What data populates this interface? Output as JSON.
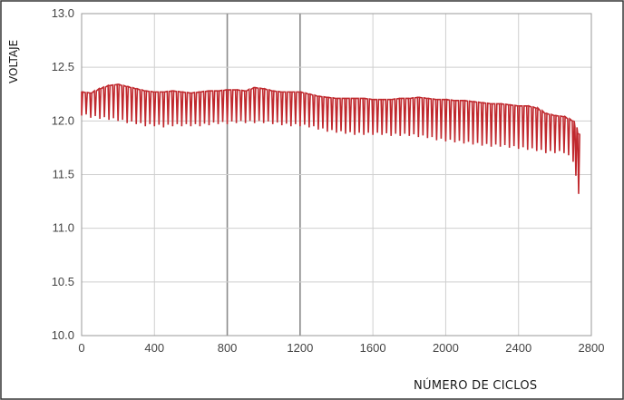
{
  "chart_data": {
    "type": "line",
    "xlabel": "NÚMERO DE CICLOS",
    "ylabel": "VOLTAJE",
    "xlim": [
      0,
      2800
    ],
    "ylim": [
      10.0,
      13.0
    ],
    "x_ticks": [
      "0",
      "400",
      "800",
      "1200",
      "1600",
      "2000",
      "2400",
      "2800"
    ],
    "y_ticks": [
      "10.0",
      "10.5",
      "11.0",
      "11.5",
      "12.0",
      "12.5",
      "13.0"
    ],
    "grid": true,
    "series": [
      {
        "color": "#c0282d",
        "x": [
          0,
          50,
          100,
          150,
          200,
          250,
          300,
          350,
          400,
          450,
          500,
          550,
          600,
          650,
          700,
          750,
          800,
          850,
          900,
          950,
          1000,
          1050,
          1100,
          1150,
          1200,
          1250,
          1300,
          1350,
          1400,
          1450,
          1500,
          1550,
          1600,
          1650,
          1700,
          1750,
          1800,
          1850,
          1900,
          1950,
          2000,
          2050,
          2100,
          2150,
          2200,
          2250,
          2300,
          2350,
          2400,
          2450,
          2500,
          2550,
          2600,
          2650,
          2700,
          2730
        ],
        "upper": [
          12.27,
          12.26,
          12.3,
          12.33,
          12.34,
          12.32,
          12.3,
          12.28,
          12.27,
          12.27,
          12.28,
          12.27,
          12.26,
          12.27,
          12.28,
          12.28,
          12.29,
          12.29,
          12.28,
          12.31,
          12.3,
          12.28,
          12.27,
          12.27,
          12.27,
          12.25,
          12.23,
          12.22,
          12.21,
          12.21,
          12.21,
          12.21,
          12.2,
          12.2,
          12.2,
          12.21,
          12.21,
          12.22,
          12.21,
          12.2,
          12.2,
          12.19,
          12.19,
          12.18,
          12.17,
          12.16,
          12.16,
          12.15,
          12.14,
          12.14,
          12.12,
          12.07,
          12.05,
          12.04,
          12.0,
          11.88
        ],
        "lower": [
          12.05,
          12.03,
          12.02,
          12.01,
          12.0,
          11.98,
          11.97,
          11.95,
          11.95,
          11.94,
          11.95,
          11.95,
          11.95,
          11.95,
          11.96,
          11.97,
          11.97,
          11.98,
          11.98,
          11.98,
          11.98,
          11.97,
          11.96,
          11.95,
          11.95,
          11.94,
          11.92,
          11.9,
          11.89,
          11.88,
          11.87,
          11.87,
          11.87,
          11.87,
          11.86,
          11.86,
          11.86,
          11.85,
          11.84,
          11.82,
          11.81,
          11.8,
          11.79,
          11.78,
          11.77,
          11.76,
          11.76,
          11.75,
          11.74,
          11.73,
          11.72,
          11.7,
          11.7,
          11.7,
          11.62,
          11.32
        ]
      }
    ]
  }
}
